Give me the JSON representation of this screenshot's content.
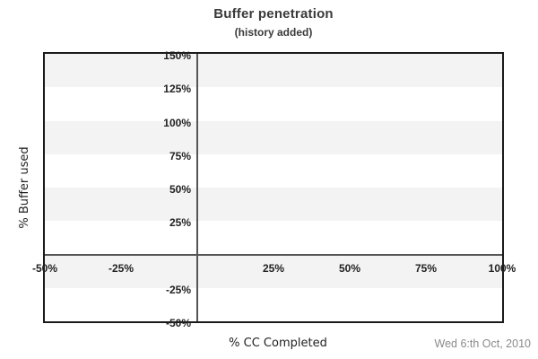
{
  "header": {
    "title": "Buffer penetration",
    "subtitle": "(history added)"
  },
  "footer": {
    "date": "Wed 6:th Oct, 2010"
  },
  "colors": {
    "band_fill": "#f3f3f3",
    "plot_border": "#1a1a1a",
    "zero_axis_line": "#555555",
    "tick_text": "#222222",
    "title_text": "#3a3a3a",
    "date_text": "#8a8a8a",
    "background": "#ffffff"
  },
  "chart_data": {
    "type": "line",
    "title": "Buffer penetration",
    "subtitle": "(history added)",
    "xlabel": "% CC Completed",
    "ylabel": "% Buffer used",
    "xlim": [
      -50,
      100
    ],
    "ylim": [
      -50,
      150
    ],
    "grid": "horizontal-bands",
    "legend": "none",
    "series": [],
    "xticks": [
      {
        "value": -50,
        "label": "-50%"
      },
      {
        "value": -25,
        "label": "-25%"
      },
      {
        "value": 25,
        "label": "25%"
      },
      {
        "value": 50,
        "label": "50%"
      },
      {
        "value": 75,
        "label": "75%"
      },
      {
        "value": 100,
        "label": "100%"
      }
    ],
    "yticks": [
      {
        "value": 150,
        "label": "150%"
      },
      {
        "value": 125,
        "label": "125%"
      },
      {
        "value": 100,
        "label": "100%"
      },
      {
        "value": 75,
        "label": "75%"
      },
      {
        "value": 50,
        "label": "50%"
      },
      {
        "value": 25,
        "label": "25%"
      },
      {
        "value": -25,
        "label": "-25%"
      },
      {
        "value": -50,
        "label": "-50%"
      }
    ],
    "gridbands": [
      {
        "from": 150,
        "to": 125
      },
      {
        "from": 100,
        "to": 75
      },
      {
        "from": 50,
        "to": 25
      },
      {
        "from": 0,
        "to": -25
      }
    ]
  }
}
